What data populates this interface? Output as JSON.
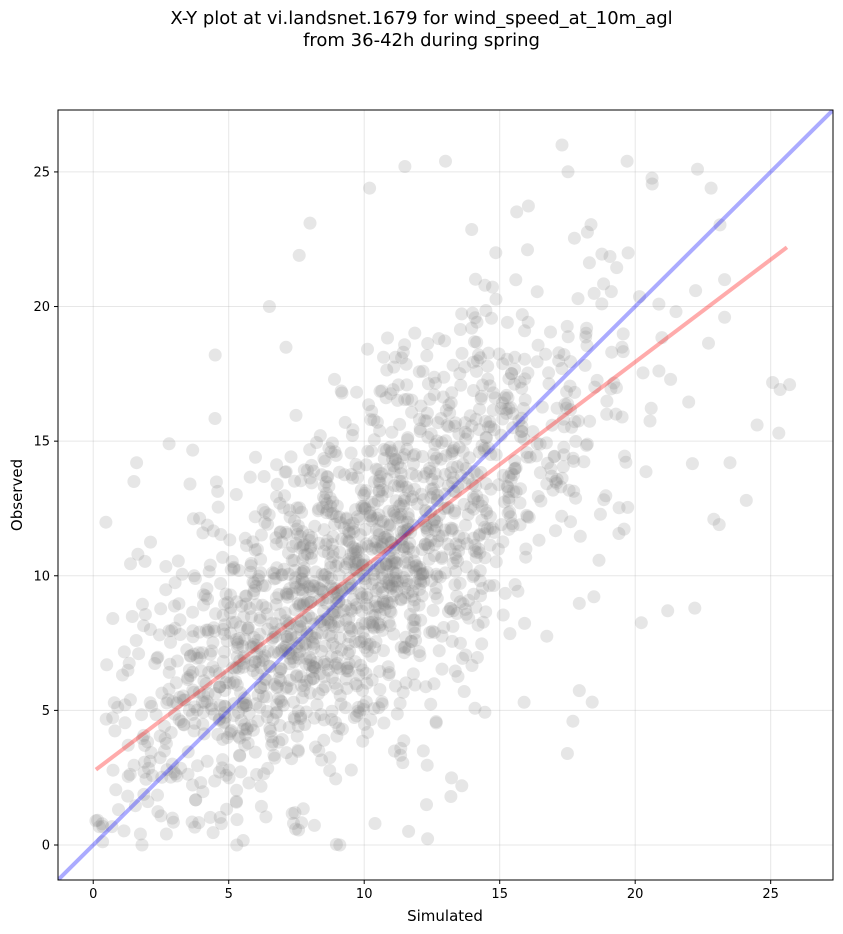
{
  "title_line1": "X-Y plot at vi.landsnet.1679 for wind_speed_at_10m_agl",
  "title_line2": "from 36-42h during spring",
  "chart_data": {
    "type": "scatter",
    "xlabel": "Simulated",
    "ylabel": "Observed",
    "xlim": [
      -1.3,
      27.3
    ],
    "ylim": [
      -1.3,
      27.3
    ],
    "xticks": [
      0,
      5,
      10,
      15,
      20,
      25
    ],
    "yticks": [
      0,
      5,
      10,
      15,
      20,
      25
    ],
    "grid": true,
    "points": {
      "color": "#808080",
      "opacity": 0.2,
      "n": 1800,
      "x_mean": 9.5,
      "x_sd": 4.6,
      "fit_slope": 0.76,
      "fit_intercept": 2.75,
      "resid_sd": 3.3,
      "samples": [
        [
          0.1,
          0.9
        ],
        [
          1.5,
          13.5
        ],
        [
          1.6,
          14.2
        ],
        [
          2.8,
          14.9
        ],
        [
          4.5,
          18.2
        ],
        [
          6.5,
          20.0
        ],
        [
          7.6,
          21.9
        ],
        [
          8.0,
          23.1
        ],
        [
          10.2,
          24.4
        ],
        [
          11.5,
          25.2
        ],
        [
          13.0,
          25.4
        ],
        [
          17.3,
          26.0
        ],
        [
          19.7,
          25.4
        ],
        [
          22.3,
          25.1
        ],
        [
          22.8,
          24.4
        ],
        [
          23.3,
          21.0
        ],
        [
          23.3,
          19.6
        ],
        [
          23.5,
          14.2
        ],
        [
          24.1,
          12.8
        ],
        [
          24.5,
          15.6
        ],
        [
          25.3,
          15.3
        ],
        [
          25.7,
          17.1
        ],
        [
          22.9,
          12.1
        ],
        [
          23.1,
          11.9
        ],
        [
          22.2,
          8.8
        ],
        [
          21.2,
          8.7
        ],
        [
          17.5,
          3.4
        ],
        [
          17.7,
          4.6
        ],
        [
          15.9,
          5.3
        ],
        [
          12.3,
          1.5
        ],
        [
          13.2,
          1.8
        ],
        [
          13.6,
          2.2
        ],
        [
          10.4,
          0.8
        ],
        [
          9.1,
          0.0
        ],
        [
          5.3,
          0.0
        ],
        [
          1.8,
          0.0
        ]
      ]
    },
    "lines": [
      {
        "name": "1:1",
        "color": "#0000ff",
        "opacity": 0.33,
        "x": [
          -1.3,
          27.3
        ],
        "y": [
          -1.3,
          27.3
        ]
      },
      {
        "name": "fit",
        "color": "#ff0000",
        "opacity": 0.33,
        "x": [
          0.1,
          25.6
        ],
        "y": [
          2.8,
          22.2
        ]
      }
    ]
  }
}
